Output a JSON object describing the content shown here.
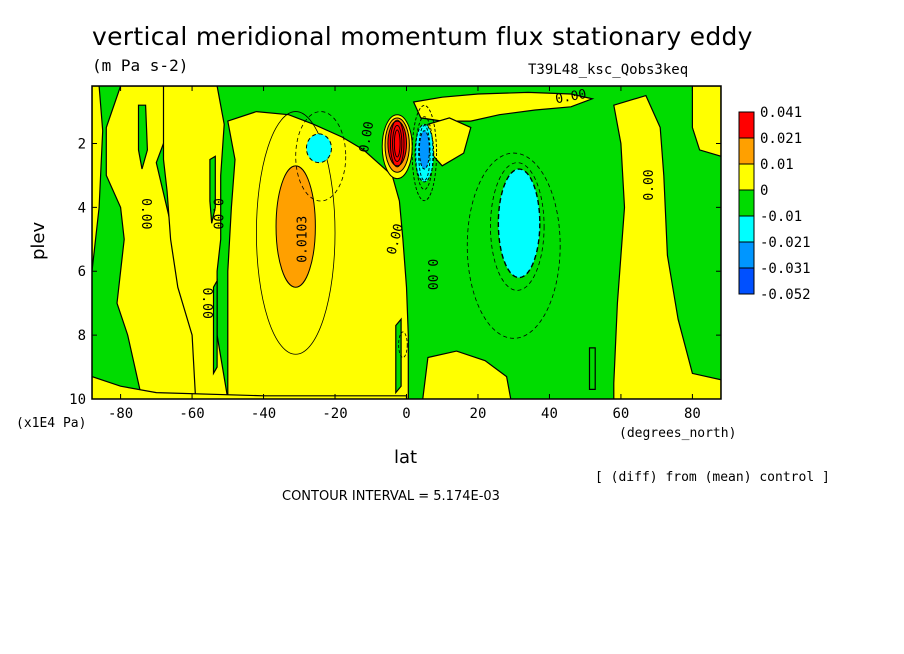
{
  "header": {
    "title": "vertical meridional momentum flux stationary eddy",
    "units": "(m Pa s-2)",
    "experiment": "T39L48_ksc_Qobs3keq"
  },
  "footer": {
    "diff_note": "[ (diff) from (mean) control ]",
    "contour_interval": "CONTOUR INTERVAL = 5.174E-03"
  },
  "colors": {
    "red": "#ff0000",
    "orange": "#ffa000",
    "yellow": "#ffff00",
    "green": "#00dc00",
    "cyan": "#00ffff",
    "blue": "#0096ff",
    "darkblue": "#0050ff"
  },
  "chart_data": {
    "type": "heatmap",
    "title": "vertical meridional momentum flux stationary eddy",
    "subtitle": "(m Pa s-2)",
    "xlabel": "lat",
    "xunit": "(degrees_north)",
    "ylabel": "plev",
    "yunit": "(x1E4 Pa)",
    "xlim": [
      -88,
      88
    ],
    "ylim": [
      10,
      0.2
    ],
    "x_ticks": [
      -80,
      -60,
      -40,
      -20,
      0,
      20,
      40,
      60,
      80
    ],
    "x_tick_labels": [
      "-80",
      "-60",
      "-40",
      "-20",
      "0",
      "20",
      "40",
      "60",
      "80"
    ],
    "y_ticks": [
      2,
      4,
      6,
      8,
      10
    ],
    "y_tick_labels": [
      "2",
      "4",
      "6",
      "8",
      "10"
    ],
    "contour_interval": 0.005174,
    "colorbar": {
      "levels": [
        "0.041",
        "0.021",
        "0.01",
        "0",
        "-0.01",
        "-0.021",
        "-0.031",
        "-0.052"
      ],
      "colors": [
        "#ff0000",
        "#ffa000",
        "#ffff00",
        "#00dc00",
        "#00ffff",
        "#0096ff",
        "#0050ff"
      ]
    },
    "contour_labels": [
      {
        "text": "0.00",
        "lat": -73,
        "plev": 4.2,
        "angle": 90
      },
      {
        "text": "0.00",
        "lat": -53,
        "plev": 4.2,
        "angle": 90
      },
      {
        "text": "0.00",
        "lat": -56,
        "plev": 7.0,
        "angle": 90
      },
      {
        "text": "0.0103",
        "lat": -29,
        "plev": 5.0,
        "angle": -90
      },
      {
        "text": "0.00",
        "lat": -11,
        "plev": 1.8,
        "angle": -80
      },
      {
        "text": "0.00",
        "lat": -3,
        "plev": 5.0,
        "angle": -75
      },
      {
        "text": "0.00",
        "lat": 7,
        "plev": 6.1,
        "angle": 90
      },
      {
        "text": "0.00",
        "lat": 46,
        "plev": 0.55,
        "angle": -10
      },
      {
        "text": "0.00",
        "lat": 68,
        "plev": 3.3,
        "angle": -90
      }
    ],
    "regions": [
      {
        "value_range": "0 to 0.01",
        "color": "yellow",
        "lat": [
          -75,
          -58
        ],
        "plev": [
          0.2,
          10
        ],
        "desc": "southern subtropics positive band"
      },
      {
        "value_range": "0.01 to 0.021",
        "color": "orange",
        "lat": [
          -37,
          -27
        ],
        "plev": [
          2.8,
          6.5
        ],
        "desc": "positive core"
      },
      {
        "value_range": ">0.041",
        "color": "red",
        "lat": [
          -5,
          0
        ],
        "plev": [
          1.4,
          2.7
        ],
        "desc": "maximum"
      },
      {
        "value_range": "-0.01 to -0.021",
        "color": "cyan",
        "lat": [
          -28,
          -21
        ],
        "plev": [
          1.8,
          2.6
        ]
      },
      {
        "value_range": "-0.01 to -0.021",
        "color": "cyan",
        "lat": [
          2,
          8
        ],
        "plev": [
          1.6,
          3.0
        ]
      },
      {
        "value_range": "-0.01 to -0.021",
        "color": "cyan",
        "lat": [
          26,
          37
        ],
        "plev": [
          2.9,
          6.2
        ],
        "desc": "northern negative core"
      },
      {
        "value_range": "0 to 0.01",
        "color": "yellow",
        "lat": [
          60,
          73
        ],
        "plev": [
          0.2,
          10
        ],
        "desc": "northern high-latitude positive band"
      }
    ]
  }
}
